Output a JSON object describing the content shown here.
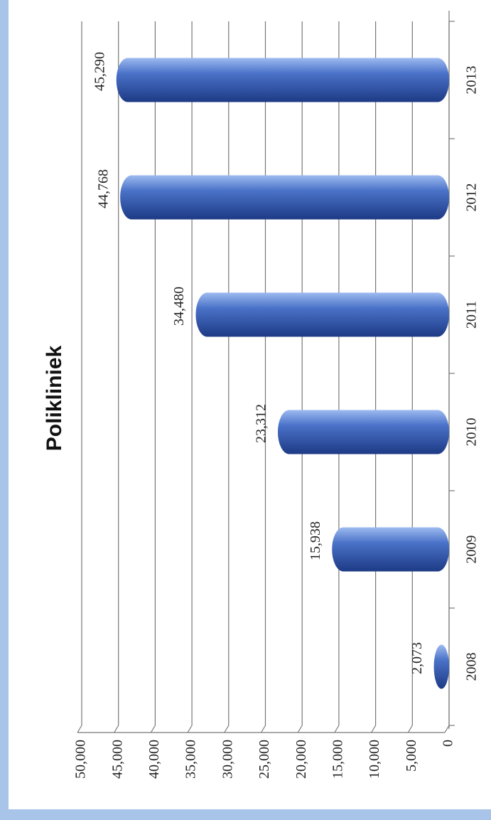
{
  "chart_data": {
    "type": "bar",
    "title": "Polikliniek",
    "categories": [
      "2008",
      "2009",
      "2010",
      "2011",
      "2012",
      "2013"
    ],
    "values": [
      2073,
      15938,
      23312,
      34480,
      44768,
      45290
    ],
    "value_labels": [
      "2,073",
      "15,938",
      "23,312",
      "34,480",
      "44,768",
      "45,290"
    ],
    "color": "#4a72c8",
    "ylim": [
      0,
      50000
    ],
    "yticks": [
      0,
      {
        "value": 5000,
        "label": "5,000"
      },
      {
        "value": 10000,
        "label": "10,000"
      },
      {
        "value": 15000,
        "label": "15,000"
      },
      {
        "value": 20000,
        "label": "20,000"
      },
      {
        "value": 25000,
        "label": "25,000"
      },
      {
        "value": 30000,
        "label": "30,000"
      },
      {
        "value": 35000,
        "label": "35,000"
      },
      {
        "value": 40000,
        "label": "40,000"
      },
      {
        "value": 45000,
        "label": "45,000"
      },
      {
        "value": 50000,
        "label": "50,000"
      }
    ],
    "grid": true
  }
}
